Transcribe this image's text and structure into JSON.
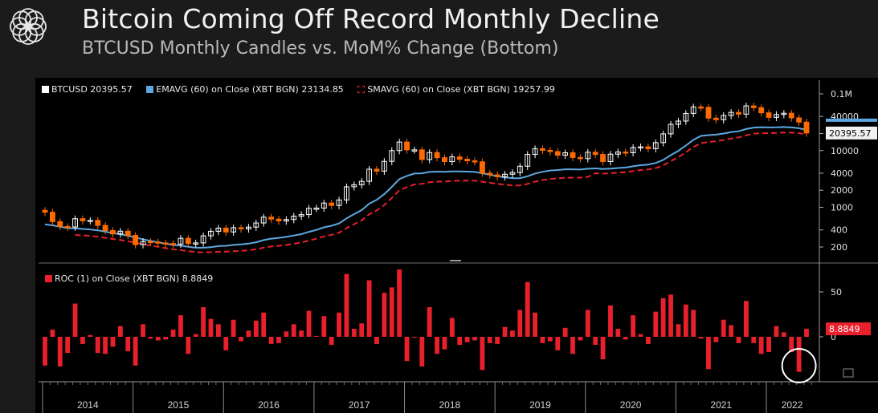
{
  "header": {
    "title": "Bitcoin Coming Off Record Monthly Decline",
    "subtitle": "BTCUSD Monthly Candles vs. MoM% Change (Bottom)",
    "logo": "circle-pattern-logo-icon"
  },
  "legend_top": [
    {
      "label": "BTCUSD 20395.57",
      "color": "#ffffff"
    },
    {
      "label": "EMAVG (60)  on Close (XBT BGN) 23134.85",
      "color": "#5ea7e0"
    },
    {
      "label": "SMAVG (60)  on Close (XBT BGN) 19257.99",
      "color": "#e8202c"
    }
  ],
  "legend_bottom": [
    {
      "label": "ROC (1)  on Close (XBT BGN) 8.8849",
      "color": "#e8202c"
    }
  ],
  "price_tag": "20395.57",
  "roc_tag": "8.8849",
  "colors": {
    "up": "#ffffff",
    "down": "#ff6a00",
    "ema": "#5ea7e0",
    "sma": "#e8202c",
    "roc": "#e8202c",
    "highlight": "#ffffff"
  },
  "chart_data": [
    {
      "type": "candlestick",
      "title": "BTCUSD Monthly Candles",
      "x_axis": "time",
      "years": [
        "2014",
        "2015",
        "2016",
        "2017",
        "2018",
        "2019",
        "2020",
        "2021",
        "2022"
      ],
      "y_scale": "log",
      "y_ticks": [
        "0.1M",
        "40000",
        "20000",
        "10000",
        "4000",
        "2000",
        "1000",
        "400",
        "200"
      ],
      "series": [
        {
          "name": "BTCUSD",
          "last": 20395.57,
          "closes": [
            820,
            560,
            460,
            450,
            630,
            580,
            590,
            480,
            390,
            340,
            380,
            320,
            220,
            250,
            245,
            236,
            230,
            225,
            285,
            230,
            236,
            315,
            378,
            430,
            368,
            437,
            416,
            448,
            530,
            672,
            620,
            575,
            610,
            700,
            745,
            960,
            970,
            1190,
            1080,
            1350,
            2300,
            2500,
            2875,
            4700,
            4340,
            6460,
            10000,
            14150,
            10300,
            10300,
            6950,
            9250,
            7500,
            6400,
            7750,
            7040,
            6600,
            6350,
            4000,
            3740,
            3460,
            3830,
            4100,
            5300,
            8550,
            10800,
            10100,
            9600,
            8300,
            9150,
            7550,
            7200,
            9350,
            8550,
            6400,
            8650,
            9450,
            9150,
            11350,
            11650,
            10800,
            13800,
            19700,
            29000,
            33100,
            45200,
            58800,
            57800,
            37300,
            35000,
            41500,
            47100,
            43800,
            61300,
            57000,
            46300,
            38500,
            43200,
            45500,
            37700,
            31800,
            20400
          ]
        },
        {
          "name": "EMAVG (60)",
          "last": 23134.85
        },
        {
          "name": "SMAVG (60)",
          "last": 19257.99
        }
      ]
    },
    {
      "type": "bar",
      "title": "MoM% Change",
      "y_ticks": [
        "50",
        "0"
      ],
      "series": [
        {
          "name": "ROC (1)",
          "last": 8.8849,
          "values": [
            -32,
            8,
            -33,
            -18,
            37,
            -8,
            2,
            -18,
            -19,
            -11,
            12,
            -16,
            -32,
            14,
            -2,
            -4,
            -3,
            8,
            24,
            -19,
            3,
            33,
            20,
            14,
            -15,
            19,
            -5,
            7,
            18,
            27,
            -8,
            -7,
            6,
            14,
            7,
            29,
            1,
            23,
            -9,
            27,
            70,
            9,
            15,
            63,
            -8,
            49,
            55,
            75,
            -27,
            -1,
            -33,
            33,
            -19,
            -14,
            21,
            -9,
            -6,
            -4,
            -37,
            -7,
            -8,
            11,
            7,
            30,
            61,
            27,
            -7,
            -5,
            -15,
            10,
            -19,
            -4,
            30,
            -9,
            -25,
            35,
            9,
            -3,
            24,
            3,
            -8,
            28,
            43,
            47,
            14,
            36,
            30,
            -2,
            -36,
            -6,
            19,
            13,
            -7,
            40,
            -7,
            -19,
            -17,
            12,
            5,
            -17,
            -39,
            9
          ]
        }
      ]
    }
  ]
}
